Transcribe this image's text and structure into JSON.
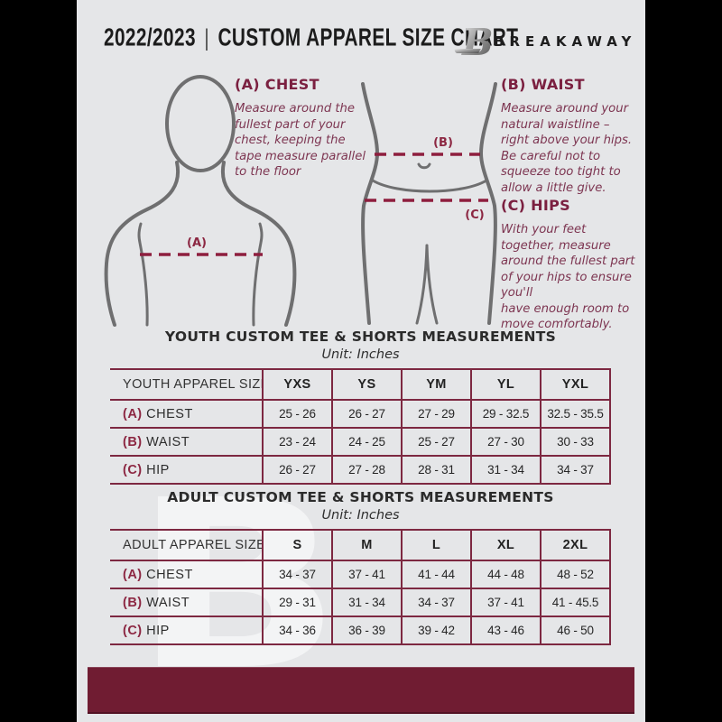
{
  "header": {
    "year": "2022/2023",
    "separator": "|",
    "title": "CUSTOM APPAREL SIZE CHART",
    "brand": "BREAKAWAY",
    "logo_letter": "B"
  },
  "guide": {
    "chest": {
      "heading": "(A) CHEST",
      "marker": "(A)",
      "body": "Measure around the\nfullest part of your\nchest, keeping the\ntape measure parallel\nto the floor"
    },
    "waist": {
      "heading": "(B) WAIST",
      "marker": "(B)",
      "body": "Measure around your\nnatural waistline –\nright above your hips.\nBe careful not to\nsqueeze too tight to\nallow a little give."
    },
    "hips": {
      "heading": "(C) HIPS",
      "marker": "(C)",
      "body": "With your feet\ntogether, measure\naround the fullest part\nof your hips to ensure\nyou'll\nhave enough room to\nmove comfortably."
    }
  },
  "youth_table": {
    "title": "YOUTH CUSTOM TEE & SHORTS MEASUREMENTS",
    "unit": "Unit: Inches",
    "header": [
      "YOUTH APPAREL SIZE",
      "YXS",
      "YS",
      "YM",
      "YL",
      "YXL"
    ],
    "rows": [
      {
        "prefix": "(A)",
        "label": "CHEST",
        "values": [
          "25 - 26",
          "26 - 27",
          "27 - 29",
          "29 - 32.5",
          "32.5 - 35.5"
        ]
      },
      {
        "prefix": "(B)",
        "label": "WAIST",
        "values": [
          "23 - 24",
          "24 - 25",
          "25 - 27",
          "27 - 30",
          "30 - 33"
        ]
      },
      {
        "prefix": "(C)",
        "label": "HIP",
        "values": [
          "26 - 27",
          "27 - 28",
          "28 - 31",
          "31 - 34",
          "34 - 37"
        ]
      }
    ]
  },
  "adult_table": {
    "title": "ADULT CUSTOM TEE & SHORTS MEASUREMENTS",
    "unit": "Unit: Inches",
    "header": [
      "ADULT APPAREL SIZE",
      "S",
      "M",
      "L",
      "XL",
      "2XL"
    ],
    "rows": [
      {
        "prefix": "(A)",
        "label": "CHEST",
        "values": [
          "34 - 37",
          "37 - 41",
          "41 - 44",
          "44 - 48",
          "48 - 52"
        ]
      },
      {
        "prefix": "(B)",
        "label": "WAIST",
        "values": [
          "29 - 31",
          "31 - 34",
          "34 - 37",
          "37 - 41",
          "41 - 45.5"
        ]
      },
      {
        "prefix": "(C)",
        "label": "HIP",
        "values": [
          "34 - 36",
          "36 - 39",
          "39 - 42",
          "43 - 46",
          "46 - 50"
        ]
      }
    ]
  },
  "watermark_letter": "B",
  "colors": {
    "maroon": "#701c32",
    "table_border": "#7d2841",
    "page_background": "#e5e6e8",
    "body_outline": "#6f6f70",
    "text_dark": "#1c1c1c"
  }
}
